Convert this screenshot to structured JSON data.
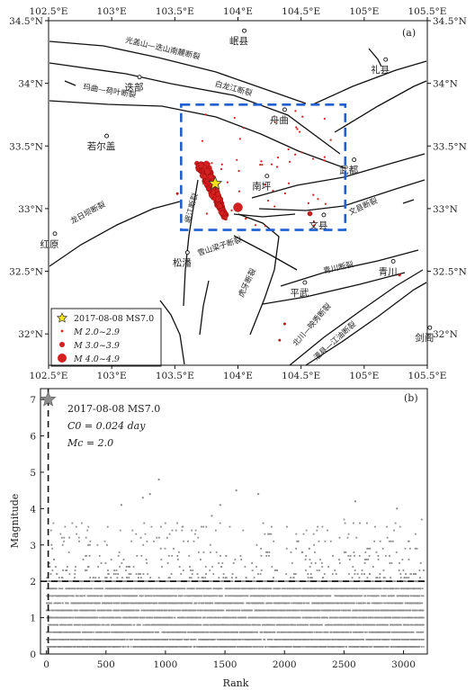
{
  "chart_data": [
    {
      "type": "scatter",
      "panel_label": "(a)",
      "xlim": [
        102.5,
        105.5
      ],
      "ylim": [
        31.75,
        34.5
      ],
      "x_ticks": [
        "102.5°E",
        "103°E",
        "103.5°E",
        "104°E",
        "104.5°E",
        "105°E",
        "105.5°E"
      ],
      "y_ticks": [
        "34.5°N",
        "34°N",
        "33.5°N",
        "33°N",
        "32.5°N",
        "32°N"
      ],
      "places": [
        {
          "name": "岷县",
          "lon": 104.05,
          "lat": 34.42
        },
        {
          "name": "礼县",
          "lon": 105.17,
          "lat": 34.19
        },
        {
          "name": "迭部",
          "lon": 103.22,
          "lat": 34.05
        },
        {
          "name": "舟曲",
          "lon": 104.37,
          "lat": 33.79
        },
        {
          "name": "若尔盖",
          "lon": 102.96,
          "lat": 33.58
        },
        {
          "name": "南坪",
          "lon": 104.23,
          "lat": 33.26
        },
        {
          "name": "武都",
          "lon": 104.92,
          "lat": 33.39
        },
        {
          "name": "文县",
          "lon": 104.68,
          "lat": 32.95
        },
        {
          "name": "红原",
          "lon": 102.55,
          "lat": 32.8
        },
        {
          "name": "松潘",
          "lon": 103.6,
          "lat": 32.65
        },
        {
          "name": "平武",
          "lon": 104.53,
          "lat": 32.41
        },
        {
          "name": "青川",
          "lon": 105.23,
          "lat": 32.58
        },
        {
          "name": "剑阁",
          "lon": 105.52,
          "lat": 32.05
        }
      ],
      "faults": [
        {
          "name": "光盖山—迭山南麓断裂",
          "lon": 103.4,
          "lat": 34.26,
          "rot": 13
        },
        {
          "name": "白龙江断裂",
          "lon": 103.96,
          "lat": 33.94,
          "rot": 15
        },
        {
          "name": "玛曲—荷叶断裂",
          "lon": 102.98,
          "lat": 33.92,
          "rot": 9
        },
        {
          "name": "文县断裂",
          "lon": 105.0,
          "lat": 33.0,
          "rot": -25
        },
        {
          "name": "岷江断裂",
          "lon": 103.65,
          "lat": 33.0,
          "rot": -75
        },
        {
          "name": "龙日坝断裂",
          "lon": 102.82,
          "lat": 32.95,
          "rot": -28
        },
        {
          "name": "雪山梁子断裂",
          "lon": 103.86,
          "lat": 32.68,
          "rot": -18
        },
        {
          "name": "虎牙断裂",
          "lon": 104.09,
          "lat": 32.4,
          "rot": -65
        },
        {
          "name": "青川断裂",
          "lon": 104.8,
          "lat": 32.51,
          "rot": -13
        },
        {
          "name": "北川—映秀断裂",
          "lon": 104.6,
          "lat": 32.06,
          "rot": -49
        },
        {
          "name": "灌县—江油断裂",
          "lon": 104.78,
          "lat": 31.93,
          "rot": -42
        }
      ],
      "study_box": {
        "lon_min": 103.55,
        "lon_max": 104.85,
        "lat_min": 32.83,
        "lat_max": 33.83
      },
      "mainshock": {
        "lon": 103.82,
        "lat": 33.2,
        "label": "2017-08-08 MS7.0"
      },
      "legend": [
        {
          "label": "2017-08-08 MS7.0",
          "symbol": "star"
        },
        {
          "label": "M 2.0~2.9",
          "symbol": "dot-small"
        },
        {
          "label": "M 3.0~3.9",
          "symbol": "dot-medium"
        },
        {
          "label": "M 4.0~4.9",
          "symbol": "dot-large"
        }
      ],
      "legend_position": "bottom-left",
      "colors": {
        "quakes": "#d42020",
        "box": "#1f5fd1",
        "star": "#f0e11a"
      }
    },
    {
      "type": "scatter",
      "panel_label": "(b)",
      "xlabel": "Rank",
      "ylabel": "Magnitude",
      "xlim": [
        -50,
        3200
      ],
      "ylim": [
        0,
        7.3
      ],
      "x_ticks": [
        0,
        500,
        1000,
        1500,
        2000,
        2500,
        3000
      ],
      "y_ticks": [
        0,
        1,
        2,
        3,
        4,
        5,
        6,
        7
      ],
      "annotations": [
        "2017-08-08 MS7.0",
        "C0 = 0.024 day",
        "Mc = 2.0"
      ],
      "mc_line": 2.0,
      "c0_line_rank": 15,
      "mainshock": {
        "rank": 0,
        "magnitude": 7.0
      },
      "notable_events": [
        {
          "rank": 945,
          "magnitude": 4.8
        },
        {
          "rank": 1595,
          "magnitude": 4.5
        },
        {
          "rank": 870,
          "magnitude": 4.4
        },
        {
          "rank": 810,
          "magnitude": 4.3
        },
        {
          "rank": 1780,
          "magnitude": 4.4
        },
        {
          "rank": 2595,
          "magnitude": 4.2
        },
        {
          "rank": 630,
          "magnitude": 4.1
        },
        {
          "rank": 1460,
          "magnitude": 4.1
        },
        {
          "rank": 2945,
          "magnitude": 4.0
        },
        {
          "rank": 1390,
          "magnitude": 3.8
        }
      ],
      "colors": {
        "points": "#8c8c8c",
        "star": "#8c8c8c"
      }
    }
  ]
}
